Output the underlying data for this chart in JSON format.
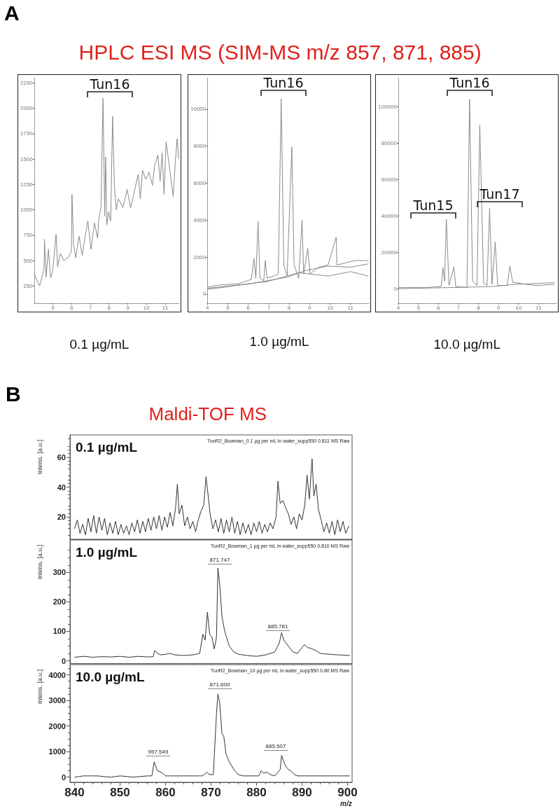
{
  "chart_data": [
    {
      "type": "line",
      "title": "HPLC ESI MS (SIM-MS m/z 857, 871, 885)",
      "xlabel": "0.1 µg/mL",
      "annotations": [
        "A",
        "Tun16"
      ],
      "marker": "none",
      "xlim": [
        4,
        11.75
      ],
      "xticks": [
        5,
        6,
        7,
        8,
        9,
        10,
        11
      ],
      "ylim": [
        80,
        2300
      ],
      "yticks": [
        250,
        500,
        750,
        1000,
        1250,
        1500,
        1750,
        2000,
        2250
      ],
      "series": [
        {
          "color": "#8a8a8a",
          "x": [
            4.0,
            4.29,
            4.53,
            4.55,
            4.64,
            4.76,
            4.88,
            4.99,
            5.17,
            5.25,
            5.4,
            5.58,
            5.81,
            5.99,
            6.02,
            6.11,
            6.22,
            6.4,
            6.57,
            6.69,
            6.87,
            7.04,
            7.22,
            7.39,
            7.45,
            7.57,
            7.68,
            7.77,
            7.82,
            7.88,
            7.98,
            8.09,
            8.19,
            8.29,
            8.39,
            8.5,
            8.74,
            8.97,
            9.15,
            9.38,
            9.56,
            9.67,
            9.79,
            9.96,
            10.14,
            10.32,
            10.43,
            10.61,
            10.73,
            10.84,
            10.94,
            11.05,
            11.25,
            11.43,
            11.54,
            11.64,
            11.72
          ],
          "values": [
            370,
            250,
            420,
            710,
            340,
            610,
            330,
            400,
            760,
            440,
            570,
            500,
            530,
            590,
            1150,
            650,
            530,
            740,
            550,
            700,
            890,
            610,
            870,
            720,
            910,
            1020,
            2100,
            940,
            1520,
            850,
            980,
            890,
            1920,
            1220,
            1000,
            1110,
            1020,
            1200,
            1020,
            1200,
            1350,
            1110,
            1390,
            1300,
            1370,
            1240,
            1430,
            1540,
            1280,
            1560,
            1150,
            1670,
            1390,
            1130,
            1460,
            1700,
            1500
          ]
        }
      ]
    },
    {
      "type": "line",
      "xlabel": "1.0 µg/mL",
      "annotations": [
        "Tun16"
      ],
      "marker": "none",
      "xlim": [
        4,
        11.9
      ],
      "xticks": [
        4,
        5,
        6,
        7,
        8,
        9,
        10,
        11
      ],
      "ylim": [
        -500,
        11700
      ],
      "yticks": [
        0,
        2000,
        4000,
        6000,
        8000,
        10000
      ],
      "series": [
        {
          "color": "#8a8a8a",
          "x": [
            4.0,
            4.61,
            5.49,
            6.15,
            6.28,
            6.37,
            6.48,
            6.57,
            6.76,
            6.83,
            6.92,
            7.25,
            7.47,
            7.61,
            7.74,
            7.9,
            8.13,
            8.24,
            8.47,
            8.63,
            8.71,
            8.91,
            9.02,
            9.46,
            9.9,
            10.3,
            10.34,
            10.78,
            11.22,
            11.88
          ],
          "values": [
            370,
            490,
            550,
            790,
            1930,
            850,
            3910,
            850,
            730,
            1810,
            850,
            970,
            1090,
            10560,
            1570,
            970,
            7950,
            1570,
            850,
            4000,
            1090,
            2470,
            1090,
            1450,
            1570,
            3070,
            1570,
            1690,
            1810,
            1810
          ]
        },
        {
          "color": "#8a8a8a",
          "x": [
            4.0,
            5.49,
            6.92,
            8.47,
            9.9,
            11.0,
            11.88
          ],
          "values": [
            310,
            490,
            670,
            1150,
            970,
            1210,
            970
          ]
        },
        {
          "color": "#8a8a8a",
          "x": [
            4.0,
            6.04,
            7.91,
            8.8,
            9.9,
            11.0,
            11.88
          ],
          "values": [
            250,
            550,
            910,
            1270,
            1510,
            1450,
            1630
          ]
        }
      ]
    },
    {
      "type": "line",
      "xlabel": "10.0 µg/mL",
      "annotations": [
        "Tun16",
        "Tun15",
        "Tun17"
      ],
      "marker": "none",
      "xlim": [
        4,
        11.9
      ],
      "xticks": [
        4,
        5,
        6,
        7,
        8,
        9,
        10,
        11
      ],
      "ylim": [
        -8000,
        116000
      ],
      "yticks": [
        0,
        20000,
        40000,
        60000,
        80000,
        100000
      ],
      "series": [
        {
          "color": "#8a8a8a",
          "x": [
            4.0,
            5.36,
            6.14,
            6.23,
            6.31,
            6.4,
            6.53,
            6.78,
            6.87,
            7.43,
            7.56,
            7.71,
            7.93,
            8.07,
            8.26,
            8.43,
            8.56,
            8.68,
            8.84,
            8.96,
            9.44,
            9.57,
            9.71,
            10.38,
            10.94,
            11.81
          ],
          "values": [
            600,
            600,
            1200,
            11500,
            4200,
            38200,
            1800,
            12100,
            1200,
            600,
            104200,
            4200,
            1800,
            90100,
            3000,
            1800,
            44200,
            2400,
            25700,
            1800,
            1800,
            12500,
            3600,
            2400,
            1800,
            2400
          ]
        },
        {
          "color": "#8a8a8a",
          "x": [
            4.0,
            6.48,
            8.71,
            9.83,
            11.81
          ],
          "values": [
            0,
            600,
            1200,
            2400,
            3300
          ]
        }
      ]
    },
    {
      "type": "line",
      "title": "Maldi-TOF MS",
      "subtitle": "0.1 µg/mL",
      "ylabel": "Intens. [a.u.]",
      "annotations": [
        "B",
        "TunR2_Bowman_0.1 µg per mL in water_supp550 0.811 MS Raw"
      ],
      "marker": "none",
      "tick_labels": "y",
      "xlim": [
        839,
        901
      ],
      "xticks": [
        840,
        850,
        860,
        870,
        880,
        890,
        900
      ],
      "ylim": [
        5,
        75
      ],
      "yticks": [
        20,
        40,
        60
      ],
      "series": [
        {
          "color": "#333333",
          "x": [
            840,
            840.6,
            841.2,
            841.8,
            842.4,
            843,
            843.6,
            844.2,
            844.8,
            845.4,
            846,
            846.6,
            847.2,
            847.8,
            848.4,
            849,
            849.6,
            850.2,
            850.8,
            851.4,
            852,
            852.6,
            853.2,
            853.8,
            854.4,
            855,
            855.6,
            856.2,
            856.8,
            857.4,
            858,
            858.6,
            859.2,
            859.8,
            860.4,
            861,
            861.6,
            862.2,
            862.6,
            863,
            863.6,
            864.2,
            864.8,
            865.4,
            866,
            866.6,
            867.2,
            867.8,
            868.4,
            868.9,
            869.3,
            869.8,
            870.4,
            871,
            871.6,
            872.2,
            872.8,
            873.4,
            874,
            874.6,
            875.2,
            875.8,
            876.4,
            877,
            877.6,
            878.2,
            878.8,
            879.4,
            880,
            880.6,
            881.2,
            881.8,
            882.4,
            883,
            883.6,
            884.3,
            884.7,
            885.2,
            885.8,
            886.4,
            887,
            887.6,
            888.2,
            888.8,
            889.4,
            890,
            890.6,
            891.1,
            891.6,
            892.2,
            892.6,
            893.1,
            893.6,
            894.2,
            894.8,
            895.4,
            896,
            896.6,
            897.2,
            897.8,
            898.4,
            899,
            899.6,
            900.3
          ],
          "values": [
            12,
            18,
            9,
            15,
            8,
            19,
            10,
            21,
            9,
            20,
            11,
            19,
            8,
            16,
            9,
            17,
            8,
            15,
            9,
            14,
            8,
            16,
            10,
            18,
            9,
            17,
            10,
            19,
            11,
            20,
            12,
            21,
            11,
            20,
            13,
            23,
            14,
            26,
            42,
            22,
            28,
            14,
            20,
            12,
            17,
            10,
            18,
            24,
            28,
            47,
            36,
            22,
            12,
            18,
            10,
            19,
            9,
            18,
            10,
            20,
            9,
            17,
            8,
            16,
            9,
            15,
            8,
            16,
            10,
            17,
            9,
            15,
            10,
            16,
            12,
            20,
            44,
            29,
            31,
            26,
            22,
            15,
            20,
            12,
            22,
            18,
            28,
            48,
            32,
            59,
            34,
            42,
            25,
            18,
            10,
            16,
            9,
            17,
            8,
            18,
            10,
            17,
            9,
            14
          ]
        }
      ]
    },
    {
      "type": "line",
      "subtitle": "1.0 µg/mL",
      "ylabel": "Intens. [a.u.]",
      "annotations": [
        "TunR2_Bowman_1 µg per mL in water_supp550 0.810 MS Raw",
        "871.747",
        "885.781"
      ],
      "marker": "none",
      "tick_labels": "y",
      "xlim": [
        839,
        901
      ],
      "xticks": [
        840,
        850,
        860,
        870,
        880,
        890,
        900
      ],
      "ylim": [
        -10,
        410
      ],
      "yticks": [
        0,
        100,
        200,
        300
      ],
      "series": [
        {
          "color": "#333333",
          "x": [
            840,
            842,
            844,
            846,
            848,
            850,
            852,
            854,
            856,
            857.3,
            857.6,
            858.2,
            859,
            860,
            861,
            862,
            864,
            866,
            867.5,
            868.2,
            868.7,
            869.2,
            869.7,
            870.2,
            870.7,
            871.2,
            871.5,
            871.9,
            872.4,
            873,
            874,
            875,
            876,
            878,
            880,
            882,
            884,
            885,
            885.5,
            886,
            887,
            888,
            889,
            890.5,
            891.2,
            892,
            893,
            894,
            896,
            898,
            900.5
          ],
          "values": [
            12,
            15,
            12,
            14,
            13,
            15,
            12,
            15,
            13,
            14,
            35,
            25,
            20,
            22,
            25,
            20,
            18,
            20,
            25,
            90,
            70,
            165,
            90,
            80,
            40,
            80,
            315,
            260,
            150,
            100,
            50,
            30,
            22,
            18,
            15,
            20,
            30,
            60,
            95,
            70,
            50,
            30,
            25,
            55,
            45,
            42,
            35,
            25,
            22,
            20,
            18
          ]
        }
      ]
    },
    {
      "type": "line",
      "subtitle": "10.0 µg/mL",
      "ylabel": "Intens. [a.u.]",
      "xlabel": "m/z",
      "annotations": [
        "TunR2_Bowman_10 µg per mL in water_supp550 0.80 MS Raw",
        "871.600",
        "957.549",
        "885.507"
      ],
      "marker": "none",
      "xlim": [
        839,
        901
      ],
      "xticks": [
        840,
        850,
        860,
        870,
        880,
        890,
        900
      ],
      "ylim": [
        -200,
        4400
      ],
      "yticks": [
        0,
        1000,
        2000,
        3000,
        4000
      ],
      "series": [
        {
          "color": "#333333",
          "x": [
            840,
            842,
            843.5,
            845,
            848,
            850,
            853,
            856,
            857,
            857.5,
            858.2,
            859,
            860,
            862,
            864,
            866,
            868,
            868.5,
            869.1,
            869.6,
            870.5,
            871.2,
            871.5,
            871.9,
            872.4,
            872.8,
            873.3,
            874,
            875,
            876,
            877,
            879,
            880.5,
            881,
            881.6,
            882.2,
            883,
            884,
            885.2,
            885.5,
            886.1,
            886.5,
            887,
            887.5,
            888.3,
            889,
            891,
            893,
            895,
            898,
            900.5
          ],
          "values": [
            0,
            50,
            50,
            50,
            0,
            50,
            0,
            50,
            50,
            600,
            250,
            200,
            50,
            50,
            50,
            50,
            50,
            100,
            200,
            100,
            100,
            2500,
            3250,
            2900,
            1700,
            1600,
            900,
            600,
            300,
            100,
            50,
            50,
            50,
            250,
            150,
            200,
            100,
            50,
            300,
            850,
            550,
            400,
            300,
            250,
            100,
            50,
            50,
            50,
            50,
            50,
            50
          ]
        }
      ]
    }
  ]
}
